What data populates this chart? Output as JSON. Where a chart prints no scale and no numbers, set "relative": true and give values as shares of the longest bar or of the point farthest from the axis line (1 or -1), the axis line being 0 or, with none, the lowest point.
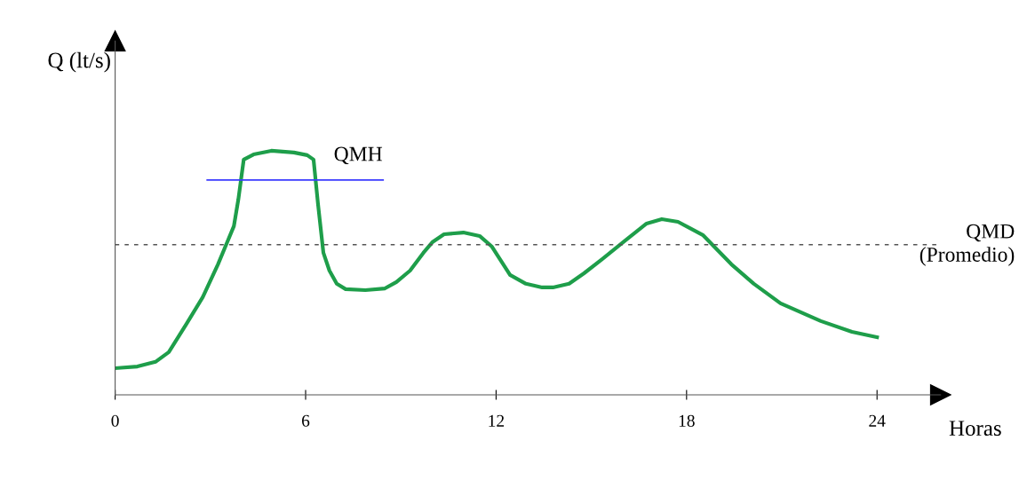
{
  "chart_data": {
    "type": "line",
    "relative": true,
    "xlabel": "Horas",
    "ylabel": "Q (lt/s)",
    "xlim": [
      0,
      26
    ],
    "xticks": [
      0,
      6,
      12,
      18,
      24
    ],
    "grid": false,
    "line_style": "solid",
    "series": [
      {
        "color": "#1e9e4a",
        "x": [
          0,
          0.7,
          1.27,
          1.69,
          2.25,
          2.76,
          3.24,
          3.74,
          3.88,
          4.05,
          4.36,
          4.92,
          5.63,
          6.05,
          6.25,
          6.39,
          6.56,
          6.75,
          6.98,
          7.26,
          7.88,
          8.5,
          8.86,
          9.29,
          9.71,
          9.99,
          10.36,
          10.97,
          11.48,
          11.87,
          12.44,
          12.94,
          13.45,
          13.79,
          14.3,
          14.77,
          15.34,
          16.04,
          16.74,
          17.22,
          17.73,
          18.51,
          19.41,
          20.12,
          20.96,
          22.23,
          23.21,
          24.0
        ],
        "values": [
          0.109,
          0.116,
          0.135,
          0.175,
          0.291,
          0.4,
          0.535,
          0.691,
          0.8,
          0.964,
          0.985,
          1.0,
          0.993,
          0.982,
          0.964,
          0.782,
          0.582,
          0.509,
          0.455,
          0.433,
          0.429,
          0.436,
          0.462,
          0.509,
          0.582,
          0.625,
          0.658,
          0.665,
          0.651,
          0.607,
          0.491,
          0.455,
          0.44,
          0.44,
          0.455,
          0.498,
          0.556,
          0.629,
          0.702,
          0.72,
          0.709,
          0.655,
          0.535,
          0.455,
          0.375,
          0.302,
          0.258,
          0.236
        ]
      },
      {
        "name": "QMH",
        "color": "#3b3bff",
        "x": [
          2.9,
          8.44
        ],
        "values": [
          0.88,
          0.88
        ]
      }
    ],
    "ref_lines": [
      {
        "axis": "y",
        "value": 0.615,
        "label": "QMD\n(Promedio)",
        "color": "#555555",
        "line_style": "dashed"
      }
    ]
  }
}
